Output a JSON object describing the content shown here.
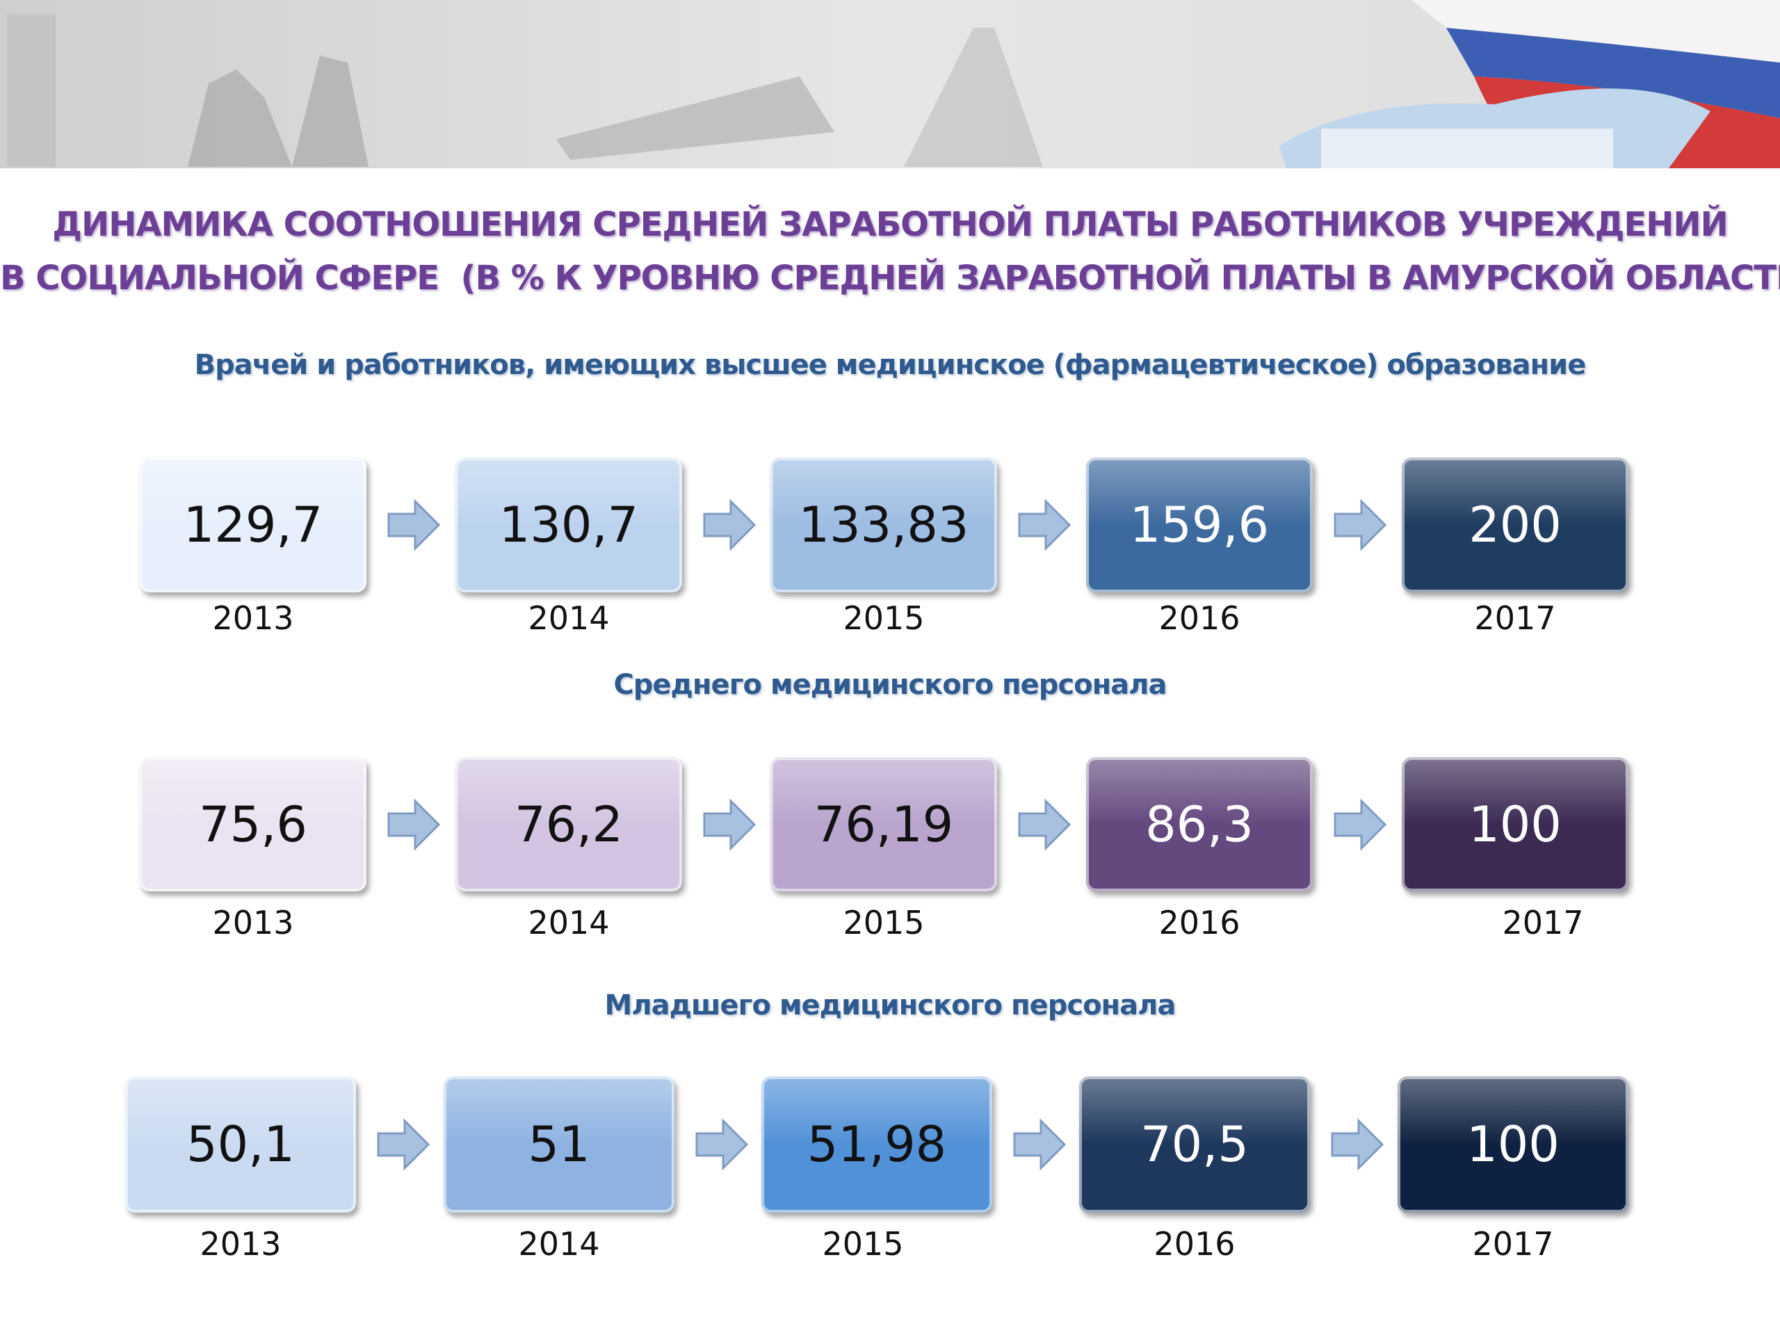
{
  "header": {
    "title_line1": "ДИНАМИКА СООТНОШЕНИЯ СРЕДНЕЙ ЗАРАБОТНОЙ ПЛАТЫ РАБОТНИКОВ УЧРЕЖДЕНИЙ",
    "title_line2": "В СОЦИАЛЬНОЙ СФЕРЕ  (В % К УРОВНЮ СРЕДНЕЙ ЗАРАБОТНОЙ ПЛАТЫ В АМУРСКОЙ ОБЛАСТИ)"
  },
  "sections": [
    {
      "title": "Врачей и работников, имеющих высшее медицинское (фармацевтическое) образование",
      "items": [
        {
          "value": "129,7",
          "year": "2013"
        },
        {
          "value": "130,7",
          "year": "2014"
        },
        {
          "value": "133,83",
          "year": "2015"
        },
        {
          "value": "159,6",
          "year": "2016"
        },
        {
          "value": "200",
          "year": "2017"
        }
      ]
    },
    {
      "title": "Среднего медицинского персонала",
      "items": [
        {
          "value": "75,6",
          "year": "2013"
        },
        {
          "value": "76,2",
          "year": "2014"
        },
        {
          "value": "76,19",
          "year": "2015"
        },
        {
          "value": "86,3",
          "year": "2016"
        },
        {
          "value": "100",
          "year": "2017"
        }
      ]
    },
    {
      "title": "Младшего медицинского персонала",
      "items": [
        {
          "value": "50,1",
          "year": "2013"
        },
        {
          "value": "51",
          "year": "2014"
        },
        {
          "value": "51,98",
          "year": "2015"
        },
        {
          "value": "70,5",
          "year": "2016"
        },
        {
          "value": "100",
          "year": "2017"
        }
      ]
    }
  ]
}
